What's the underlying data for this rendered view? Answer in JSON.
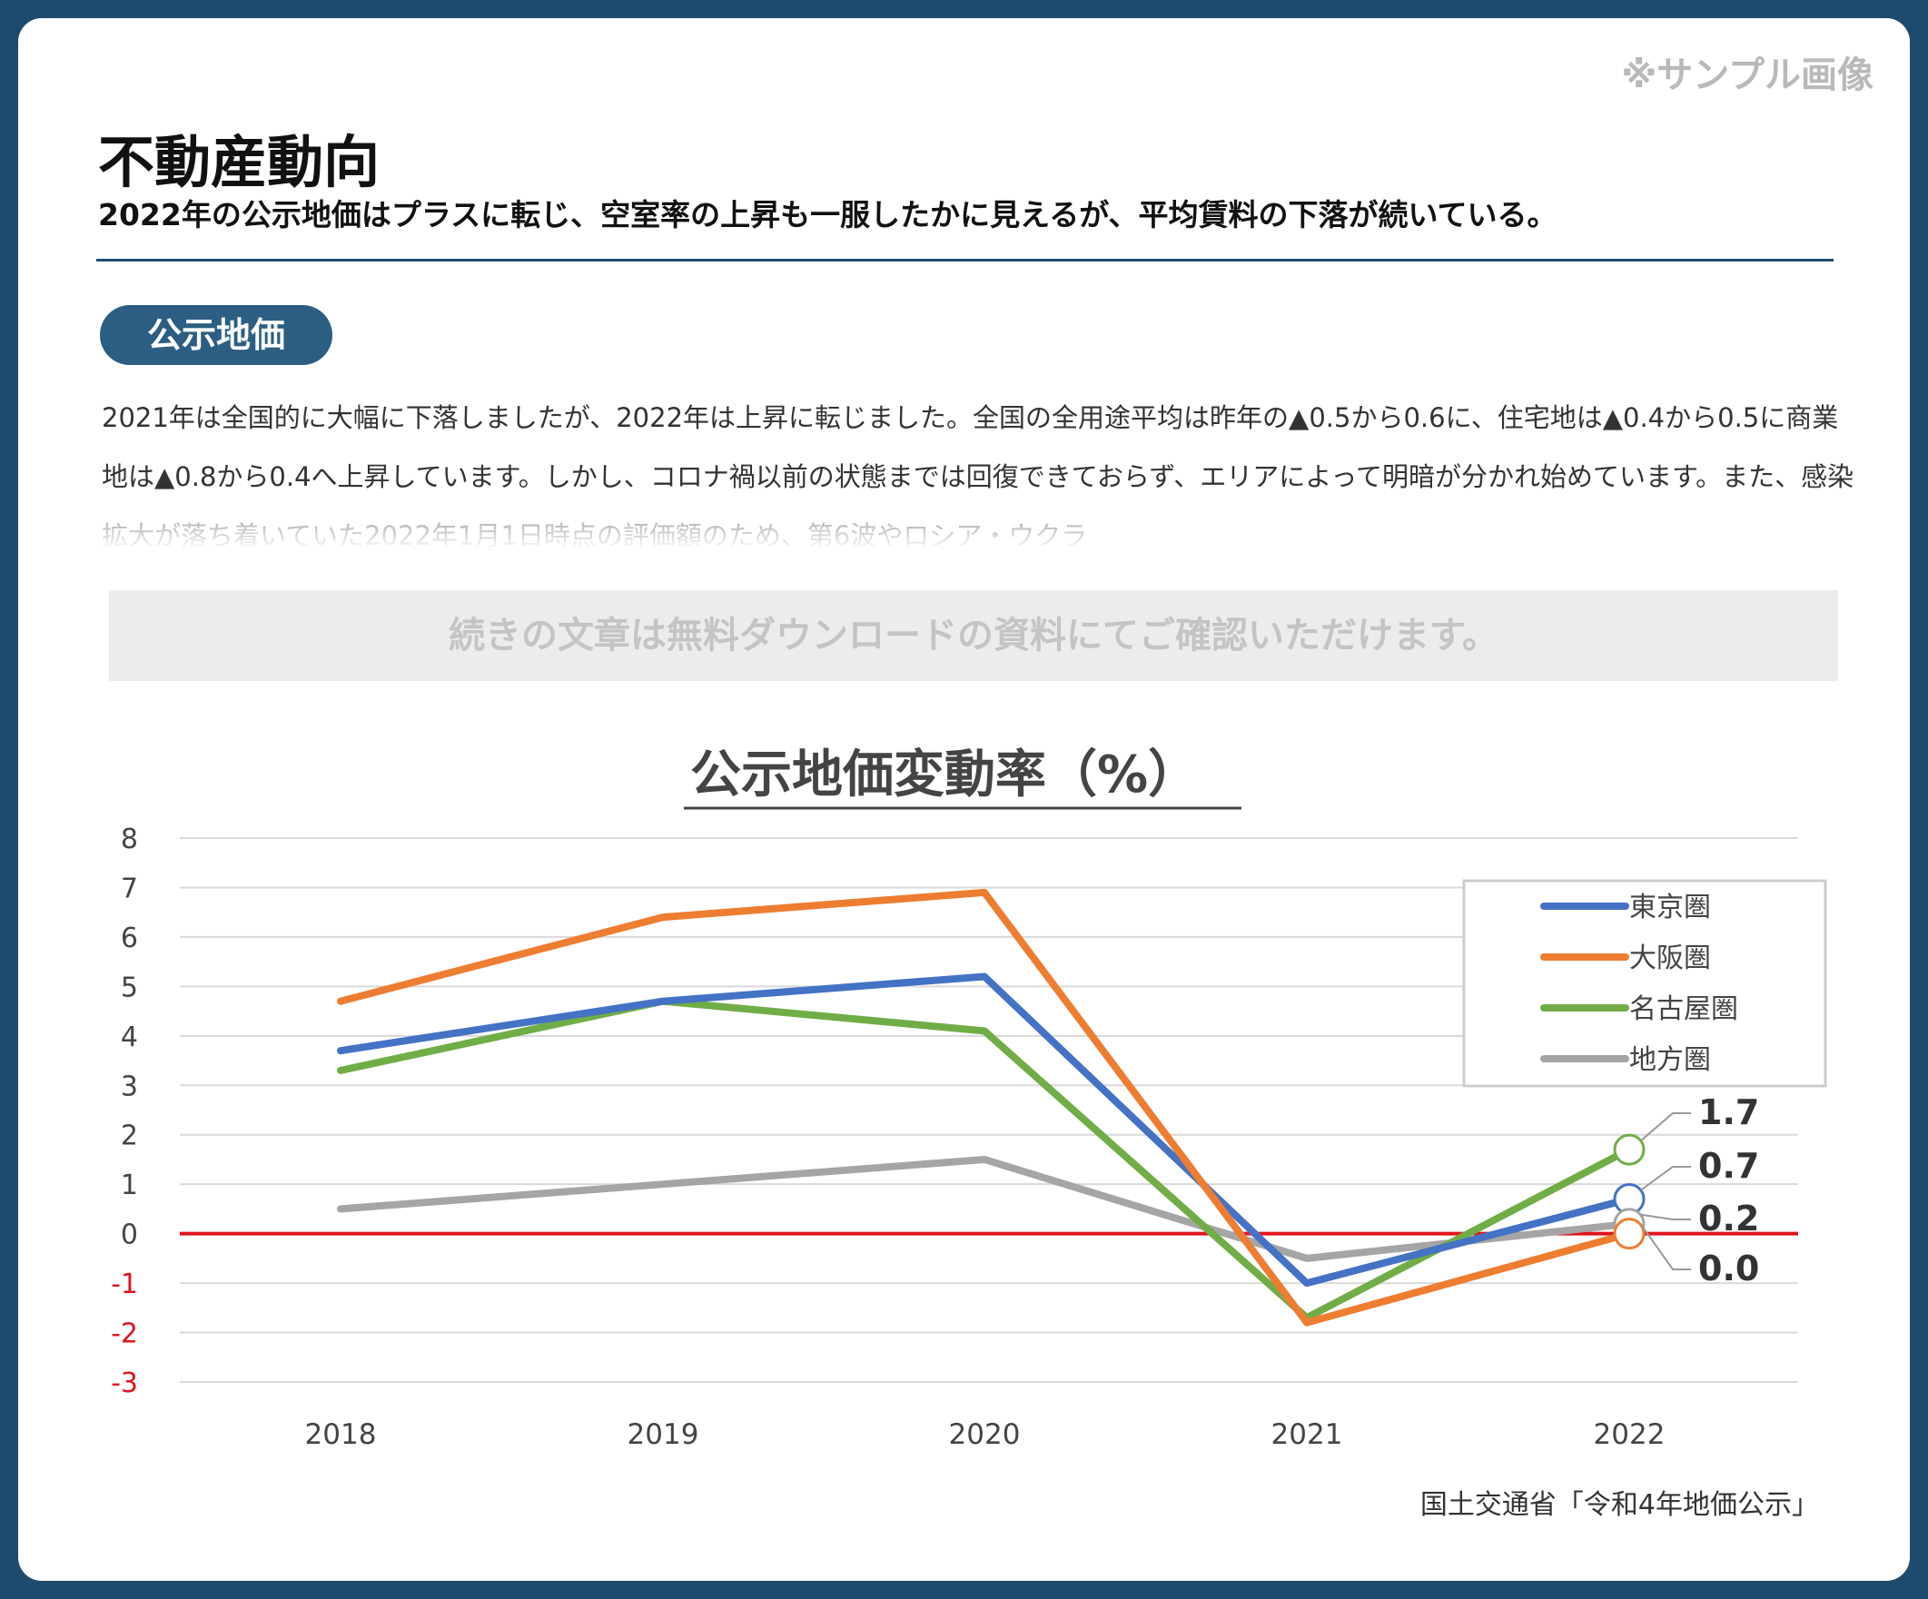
{
  "sample_note": "※サンプル画像",
  "header": {
    "title": "不動産動向",
    "subtitle": "2022年の公示地価はプラスに転じ、空室率の上昇も一服したかに見えるが、平均賃料の下落が続いている。"
  },
  "section": {
    "badge": "公示地価",
    "body": "2021年は全国的に大幅に下落しましたが、2022年は上昇に転じました。全国の全用途平均は昨年の▲0.5から0.6に、住宅地は▲0.4から0.5に商業地は▲0.8から0.4へ上昇しています。しかし、コロナ禍以前の状態までは回復できておらず、エリアによって明暗が分かれ始めています。また、感染拡大が落ち着いていた2022年1月1日時点の評価額のため、第6波やロシア・ウクラ",
    "cta": "続きの文章は無料ダウンロードの資料にてご確認いただけます。"
  },
  "source": "国土交通省「令和4年地価公示」",
  "colors": {
    "navy": "#1e4a6d",
    "zero_line": "#e0141e",
    "negative_tick": "#e0141e"
  },
  "chart_data": {
    "type": "line",
    "title": "公示地価変動率（%）",
    "categories": [
      "2018",
      "2019",
      "2020",
      "2021",
      "2022"
    ],
    "ylim": [
      -3,
      8
    ],
    "yticks": [
      "8",
      "7",
      "6",
      "5",
      "4",
      "3",
      "2",
      "1",
      "0",
      "-1",
      "-2",
      "-3"
    ],
    "grid": true,
    "legend_position": "top-right",
    "series": [
      {
        "name": "東京圏",
        "color": "#4472c4",
        "values": [
          3.7,
          4.7,
          5.2,
          -1.0,
          0.7
        ],
        "end_label": "0.7"
      },
      {
        "name": "大阪圏",
        "color": "#ed7d31",
        "values": [
          4.7,
          6.4,
          6.9,
          -1.8,
          0.0
        ],
        "end_label": "0.0"
      },
      {
        "name": "名古屋圏",
        "color": "#70ad47",
        "values": [
          3.3,
          4.7,
          4.1,
          -1.7,
          1.7
        ],
        "end_label": "1.7"
      },
      {
        "name": "地方圏",
        "color": "#a5a5a5",
        "values": [
          0.5,
          1.0,
          1.5,
          -0.5,
          0.2
        ],
        "end_label": "0.2"
      }
    ]
  }
}
